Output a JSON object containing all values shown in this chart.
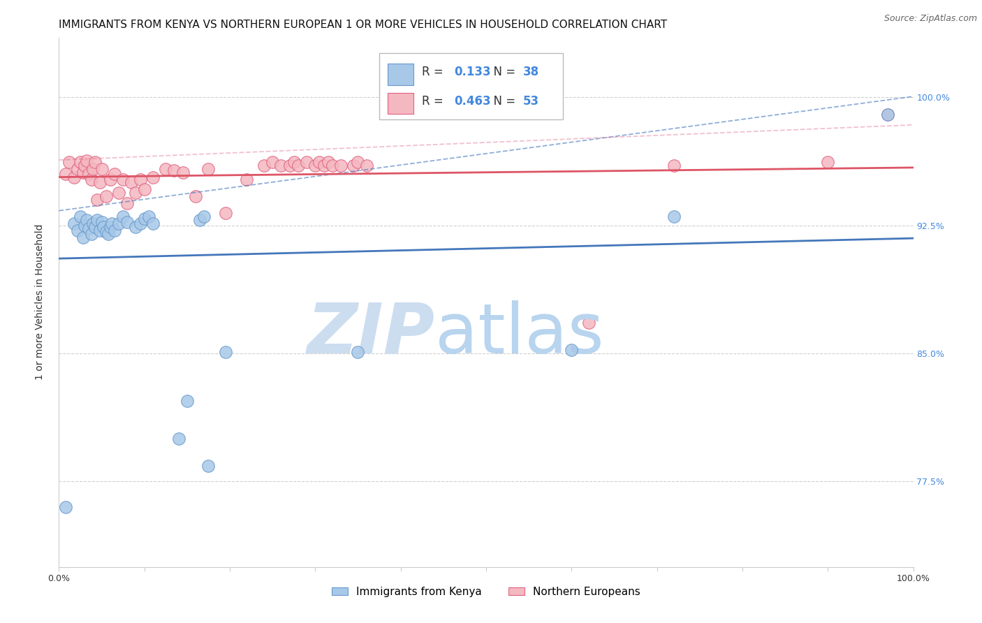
{
  "title": "IMMIGRANTS FROM KENYA VS NORTHERN EUROPEAN 1 OR MORE VEHICLES IN HOUSEHOLD CORRELATION CHART",
  "source": "Source: ZipAtlas.com",
  "ylabel": "1 or more Vehicles in Household",
  "xlim": [
    0.0,
    1.0
  ],
  "ylim": [
    0.725,
    1.035
  ],
  "yticks": [
    0.775,
    0.85,
    0.925,
    1.0
  ],
  "ytick_labels": [
    "77.5%",
    "85.0%",
    "92.5%",
    "100.0%"
  ],
  "xticks": [
    0.0,
    0.1,
    0.2,
    0.3,
    0.4,
    0.5,
    0.6,
    0.7,
    0.8,
    0.9,
    1.0
  ],
  "xtick_labels": [
    "0.0%",
    "",
    "",
    "",
    "",
    "",
    "",
    "",
    "",
    "",
    "100.0%"
  ],
  "kenya_R": 0.133,
  "kenya_N": 38,
  "northern_R": 0.463,
  "northern_N": 53,
  "kenya_color": "#a8c8e8",
  "northern_color": "#f4b8c0",
  "kenya_edge_color": "#6699cc",
  "northern_edge_color": "#e06080",
  "kenya_line_color": "#4477bb",
  "northern_line_color": "#dd5566",
  "kenya_scatter_x": [
    0.008,
    0.018,
    0.022,
    0.025,
    0.028,
    0.03,
    0.032,
    0.035,
    0.038,
    0.04,
    0.042,
    0.045,
    0.048,
    0.05,
    0.052,
    0.055,
    0.058,
    0.06,
    0.062,
    0.065,
    0.07,
    0.075,
    0.08,
    0.09,
    0.095,
    0.1,
    0.105,
    0.11,
    0.14,
    0.15,
    0.165,
    0.17,
    0.175,
    0.195,
    0.35,
    0.6,
    0.72,
    0.97
  ],
  "kenya_scatter_y": [
    0.76,
    0.926,
    0.922,
    0.93,
    0.918,
    0.925,
    0.928,
    0.923,
    0.92,
    0.926,
    0.924,
    0.928,
    0.922,
    0.927,
    0.924,
    0.921,
    0.92,
    0.924,
    0.926,
    0.922,
    0.926,
    0.93,
    0.927,
    0.924,
    0.926,
    0.929,
    0.93,
    0.926,
    0.8,
    0.822,
    0.928,
    0.93,
    0.784,
    0.851,
    0.851,
    0.852,
    0.93,
    0.99
  ],
  "northern_scatter_x": [
    0.008,
    0.012,
    0.018,
    0.022,
    0.025,
    0.028,
    0.03,
    0.032,
    0.035,
    0.038,
    0.04,
    0.042,
    0.045,
    0.048,
    0.05,
    0.055,
    0.06,
    0.065,
    0.07,
    0.075,
    0.08,
    0.085,
    0.09,
    0.095,
    0.1,
    0.11,
    0.125,
    0.135,
    0.145,
    0.16,
    0.175,
    0.195,
    0.22,
    0.24,
    0.25,
    0.26,
    0.27,
    0.275,
    0.28,
    0.29,
    0.3,
    0.305,
    0.31,
    0.315,
    0.32,
    0.33,
    0.345,
    0.35,
    0.36,
    0.62,
    0.72,
    0.9,
    0.97
  ],
  "northern_scatter_y": [
    0.955,
    0.962,
    0.953,
    0.958,
    0.962,
    0.956,
    0.96,
    0.963,
    0.955,
    0.952,
    0.958,
    0.962,
    0.94,
    0.95,
    0.958,
    0.942,
    0.952,
    0.955,
    0.944,
    0.952,
    0.938,
    0.95,
    0.944,
    0.952,
    0.946,
    0.953,
    0.958,
    0.957,
    0.956,
    0.942,
    0.958,
    0.932,
    0.952,
    0.96,
    0.962,
    0.96,
    0.96,
    0.962,
    0.96,
    0.962,
    0.96,
    0.962,
    0.96,
    0.962,
    0.96,
    0.96,
    0.96,
    0.962,
    0.96,
    0.868,
    0.96,
    0.962,
    0.99
  ],
  "watermark_zip": "ZIP",
  "watermark_atlas": "atlas",
  "watermark_color": "#ccddf0",
  "background_color": "#ffffff",
  "grid_color": "#d0d0d0",
  "title_fontsize": 11,
  "tick_fontsize": 9,
  "source_fontsize": 9,
  "legend_fontsize": 12,
  "marker_size": 160
}
